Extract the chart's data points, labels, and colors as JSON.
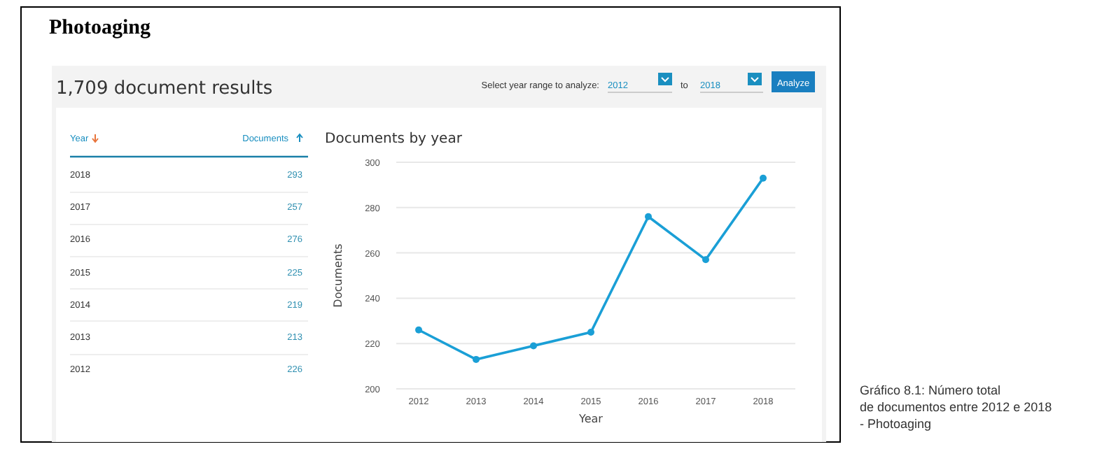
{
  "chart_data": {
    "type": "line",
    "title": "Documents by year",
    "xlabel": "Year",
    "ylabel": "Documents",
    "categories": [
      "2012",
      "2013",
      "2014",
      "2015",
      "2016",
      "2017",
      "2018"
    ],
    "series": [
      {
        "color": "#1a9fd6",
        "values": [
          226,
          213,
          219,
          225,
          276,
          257,
          293
        ]
      }
    ],
    "ylim": [
      200,
      300
    ],
    "yticks": [
      200,
      220,
      240,
      260,
      280,
      300
    ],
    "grid": "y",
    "marker": "circle",
    "line_style": "solid",
    "legend": false,
    "annotations": [
      "Photoaging",
      "1,709 document results",
      "Select year range to analyze:",
      "2012",
      "to",
      "2018",
      "Analyze",
      "Year",
      "Documents",
      "2018",
      "293",
      "2017",
      "257",
      "2016",
      "276",
      "2015",
      "225",
      "2014",
      "219",
      "2013",
      "213",
      "2012",
      "226",
      "Gráfico 8.1: Número total de documentos entre 2012 e 2018 - Photoaging"
    ]
  }
}
